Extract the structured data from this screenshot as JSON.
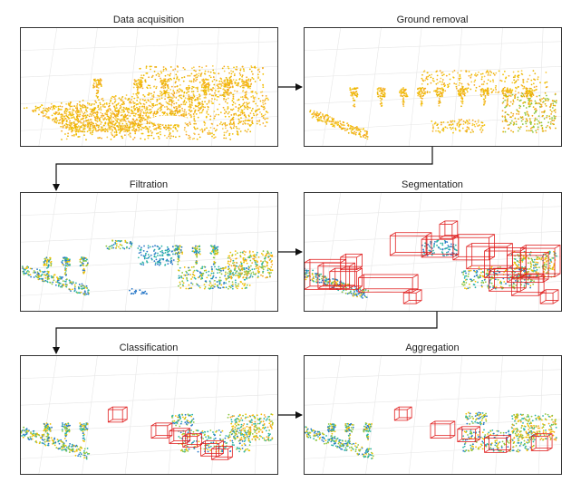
{
  "stages": [
    {
      "id": "data-acquisition",
      "title": "Data acquisition"
    },
    {
      "id": "ground-removal",
      "title": "Ground removal"
    },
    {
      "id": "filtration",
      "title": "Filtration"
    },
    {
      "id": "segmentation",
      "title": "Segmentation"
    },
    {
      "id": "classification",
      "title": "Classification"
    },
    {
      "id": "aggregation",
      "title": "Aggregation"
    }
  ],
  "colors": {
    "yellow": "#f2c100",
    "orange": "#f5a623",
    "teal": "#2bb3a6",
    "blue": "#2878c8",
    "green": "#8cc63f",
    "box": "#e02020",
    "border": "#333333",
    "grid": "#e6e6e6"
  }
}
